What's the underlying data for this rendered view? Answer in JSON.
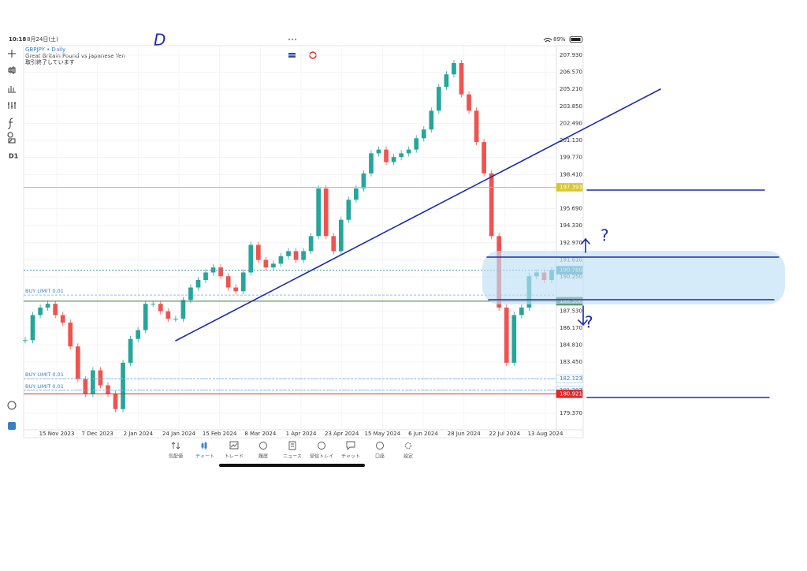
{
  "status_bar": {
    "time": "10:18",
    "date": "8月24日(土)",
    "battery": "89%"
  },
  "chart_header": {
    "symbol": "GBPJPY • Daily",
    "description": "Great Britain Pound vs Japanese Yen",
    "status": "取引終了しています"
  },
  "toolbar": {
    "timeframe": "D1"
  },
  "chart_data": {
    "type": "candlestick",
    "x_labels": [
      "15 Nov 2023",
      "7 Dec 2023",
      "2 Jan 2024",
      "24 Jan 2024",
      "15 Feb 2024",
      "8 Mar 2024",
      "1 Apr 2024",
      "23 Apr 2024",
      "15 May 2024",
      "6 Jun 2024",
      "28 Jun 2024",
      "22 Jul 2024",
      "13 Aug 2024"
    ],
    "closes": [
      185.2,
      187.2,
      187.8,
      188.1,
      187.2,
      186.6,
      184.7,
      182.1,
      180.9,
      182.8,
      181.6,
      180.9,
      179.7,
      183.4,
      185.3,
      186.0,
      188.1,
      188.1,
      187.5,
      186.9,
      186.9,
      188.4,
      189.4,
      190.0,
      190.6,
      191.0,
      190.3,
      189.4,
      189.1,
      190.6,
      192.8,
      191.6,
      191.0,
      191.3,
      191.9,
      192.3,
      191.6,
      192.3,
      193.5,
      197.3,
      193.5,
      192.3,
      194.8,
      196.4,
      197.3,
      198.5,
      200.1,
      200.4,
      199.4,
      199.8,
      200.1,
      200.4,
      201.3,
      202.0,
      203.5,
      205.4,
      206.4,
      207.3,
      204.8,
      203.5,
      201.0,
      198.5,
      193.5,
      187.8,
      183.4,
      187.2,
      187.8,
      190.3,
      190.6,
      190.0,
      190.78
    ],
    "up_color": "#26a69a",
    "down_color": "#ef5350",
    "ylim": [
      178.05,
      208.68
    ],
    "yticks": [
      {
        "value": 207.93,
        "label": "207.930"
      },
      {
        "value": 206.57,
        "label": "206.570"
      },
      {
        "value": 205.21,
        "label": "205.210"
      },
      {
        "value": 203.85,
        "label": "203.850"
      },
      {
        "value": 202.49,
        "label": "202.490"
      },
      {
        "value": 201.13,
        "label": "201.130"
      },
      {
        "value": 199.77,
        "label": "199.770"
      },
      {
        "value": 198.41,
        "label": "198.410"
      },
      {
        "value": 195.69,
        "label": "195.690"
      },
      {
        "value": 194.33,
        "label": "194.330"
      },
      {
        "value": 192.97,
        "label": "192.970"
      },
      {
        "value": 191.61,
        "label": "191.610"
      },
      {
        "value": 190.25,
        "label": "190.250"
      },
      {
        "value": 187.53,
        "label": "187.530"
      },
      {
        "value": 186.17,
        "label": "186.170"
      },
      {
        "value": 184.81,
        "label": "184.810"
      },
      {
        "value": 183.45,
        "label": "183.450"
      },
      {
        "value": 179.37,
        "label": "179.370"
      }
    ],
    "price_levels": [
      {
        "price": 197.393,
        "label": "197.393",
        "color": "#d9c62f",
        "text_color": "#ffffff"
      },
      {
        "price": 190.78,
        "label": "190.780",
        "color": "#3a9ca6",
        "text_color": "#ffffff"
      },
      {
        "price": 188.306,
        "label": "188.306",
        "color": "#3f7d3a",
        "text_color": "#ffffff"
      },
      {
        "price": 182.123,
        "label": "182.123",
        "color": "#8fbfe6",
        "text_color": "#3a7fc4"
      },
      {
        "price": 181.207,
        "label": "181.207",
        "color": "#8fbfe6",
        "text_color": "#3a7fc4"
      },
      {
        "price": 180.921,
        "label": "180.921",
        "color": "#e02828",
        "text_color": "#ffffff"
      }
    ],
    "orders": [
      {
        "label": "BUY LIMIT 0.01",
        "price": 188.8
      },
      {
        "label": "BUY LIMIT 0.01",
        "price": 182.123
      },
      {
        "label": "BUY LIMIT 0.01",
        "price": 181.207
      }
    ]
  },
  "annotations": {
    "letter": "D",
    "question_up": "?",
    "question_down": "?"
  },
  "bottom_nav": [
    {
      "label": "気配値"
    },
    {
      "label": "チャート"
    },
    {
      "label": "トレード"
    },
    {
      "label": "履歴"
    },
    {
      "label": "ニュース"
    },
    {
      "label": "受信トレイ"
    },
    {
      "label": "チャット"
    },
    {
      "label": "口座"
    },
    {
      "label": "設定"
    }
  ]
}
